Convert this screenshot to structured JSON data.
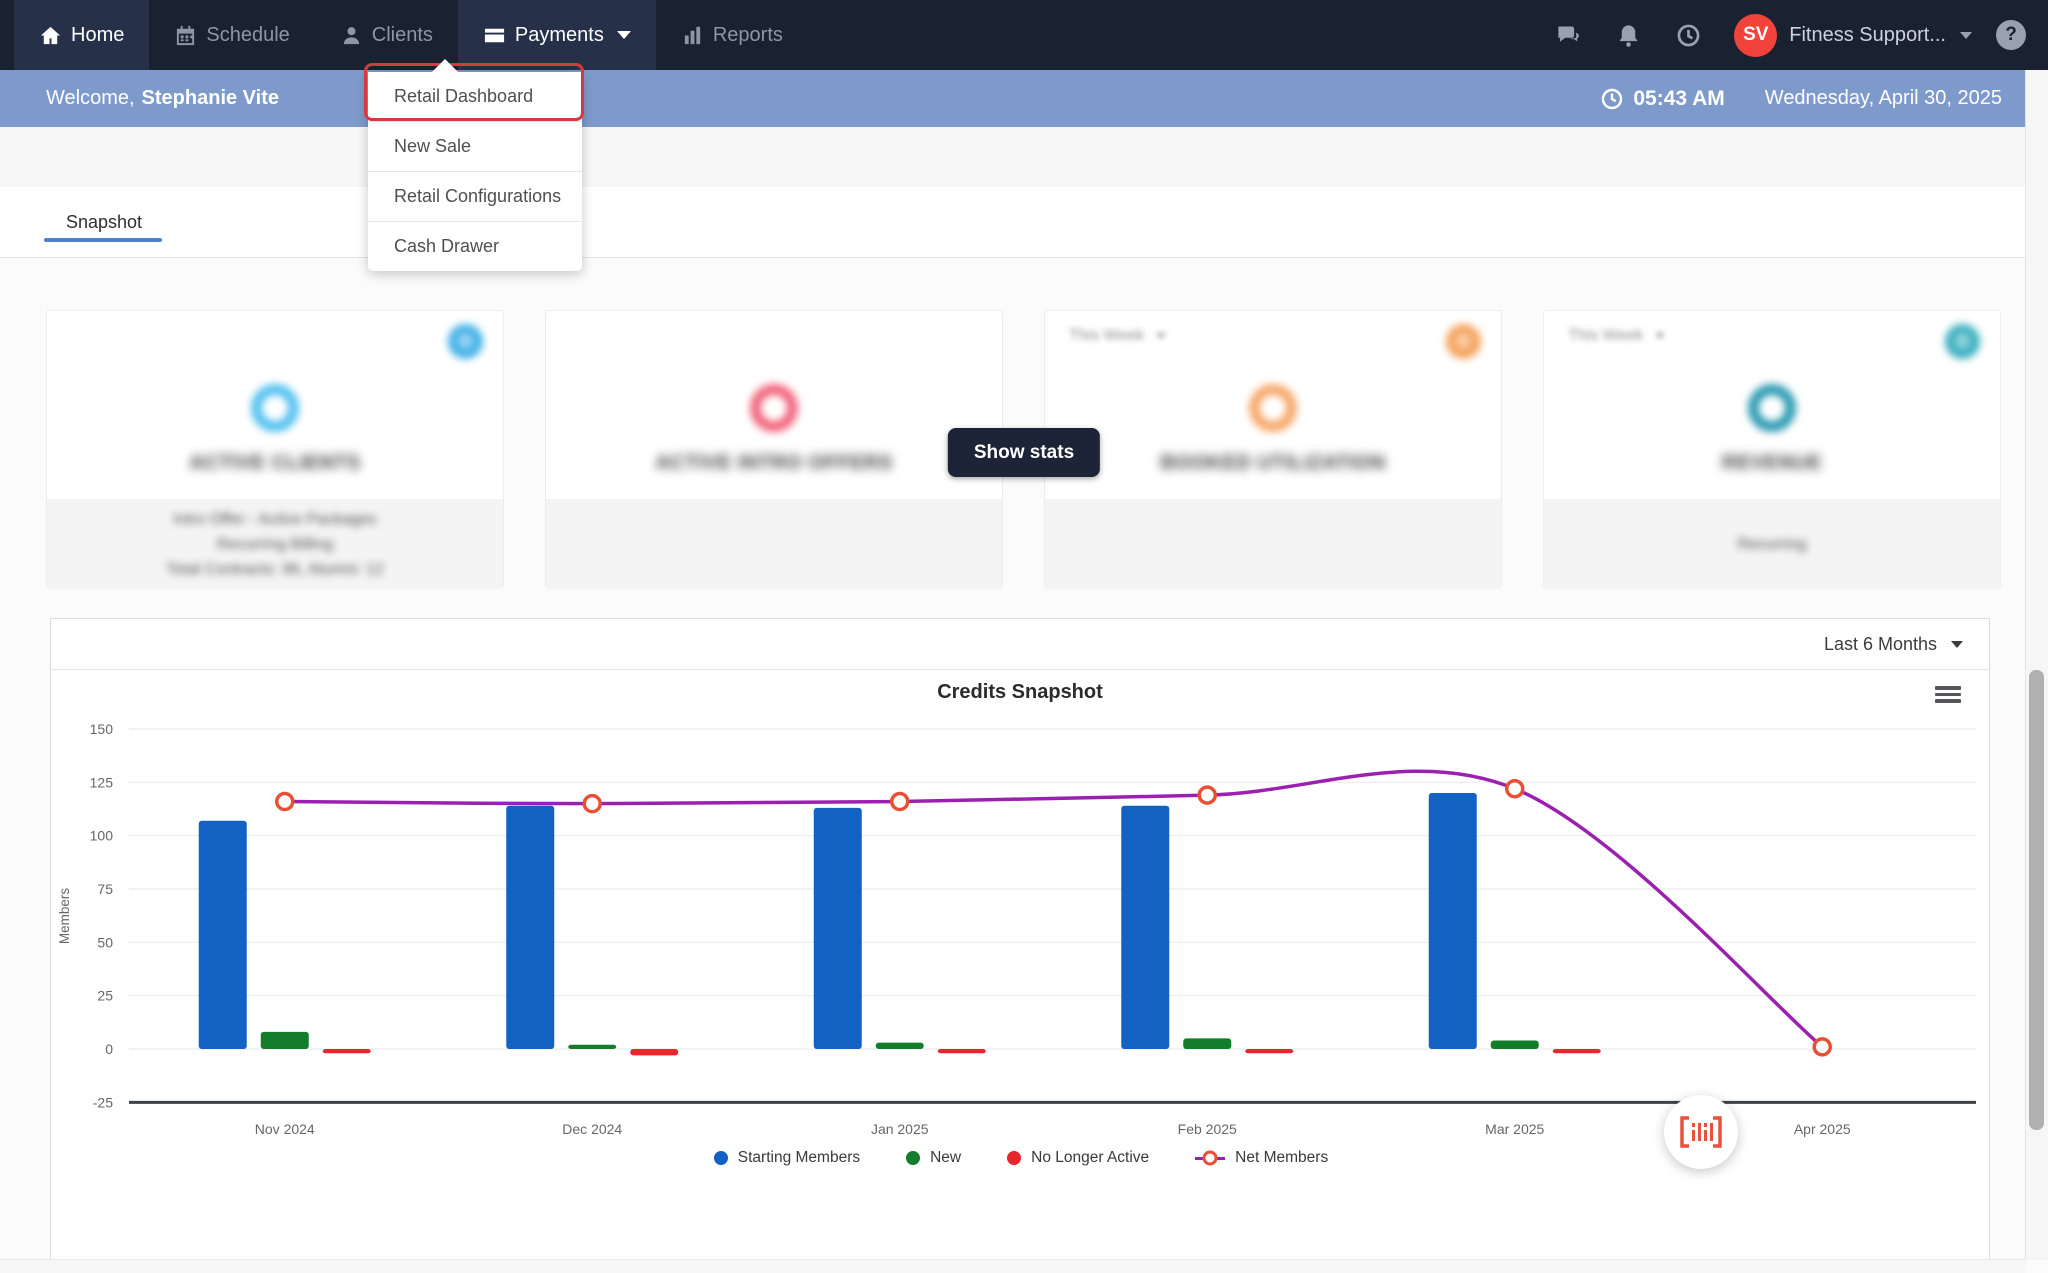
{
  "navbar": {
    "items": [
      {
        "label": "Home",
        "icon": "home-icon",
        "active": true
      },
      {
        "label": "Schedule",
        "icon": "calendar-icon",
        "active": false
      },
      {
        "label": "Clients",
        "icon": "person-icon",
        "active": false
      },
      {
        "label": "Payments",
        "icon": "credit-card-icon",
        "active": true,
        "expanded": true
      },
      {
        "label": "Reports",
        "icon": "bar-chart-icon",
        "active": false
      }
    ],
    "right": {
      "icons": [
        "chat-icon",
        "notifications-bell-icon",
        "history-clock-icon"
      ],
      "avatar_initials": "SV",
      "avatar_color": "#f2433b",
      "account_label": "Fitness Support...",
      "help_icon": "help-icon"
    }
  },
  "welcome_bar": {
    "greeting_prefix": "Welcome,",
    "user_name": "Stephanie Vite",
    "clock_icon": "clock-icon",
    "time": "05:43 AM",
    "date": "Wednesday, April 30, 2025",
    "background": "#7e9acb"
  },
  "payments_menu": {
    "items": [
      "Retail Dashboard",
      "New Sale",
      "Retail Configurations",
      "Cash Drawer"
    ],
    "highlighted_item": "Retail Dashboard",
    "highlight_color": "#d63a41"
  },
  "tabs": {
    "active_tab": "Snapshot",
    "underline_color": "#4d7fd1"
  },
  "stat_cards": [
    {
      "title": "ACTIVE CLIENTS",
      "accent_color": "#57c2f0",
      "gear_color": "#41b1e8",
      "period": null,
      "footer_lines": [
        "Intro Offer - Active Packages",
        "Recurring Billing",
        "Total Contracts: 96, Alumni: 12"
      ]
    },
    {
      "title": "ACTIVE INTRO OFFERS",
      "accent_color": "#f2677f",
      "gear_color": null,
      "period": null,
      "footer_lines": []
    },
    {
      "title": "BOOKED UTILIZATION",
      "accent_color": "#f6a96d",
      "gear_color": "#f5a25d",
      "period": "This Week",
      "footer_lines": []
    },
    {
      "title": "REVENUE",
      "accent_color": "#2f9bb3",
      "gear_color": "#3bafbf",
      "period": "This Week",
      "footer_lines": [
        "Recurring"
      ]
    }
  ],
  "show_stats_button": {
    "label": "Show stats",
    "background": "#1d2438"
  },
  "chart_panel": {
    "range_label": "Last 6 Months",
    "menu_icon": "hamburger-menu-icon",
    "scan_icon": "barcode-scan-icon"
  },
  "chart_data": {
    "type": "bar",
    "title": "Credits Snapshot",
    "categories": [
      "Nov 2024",
      "Dec 2024",
      "Jan 2025",
      "Feb 2025",
      "Mar 2025",
      "Apr 2025"
    ],
    "series": [
      {
        "name": "Starting Members",
        "kind": "bar",
        "color": "#1262c4",
        "values": [
          107,
          114,
          113,
          114,
          120,
          0
        ]
      },
      {
        "name": "New",
        "kind": "bar",
        "color": "#147d2b",
        "values": [
          8,
          2,
          3,
          5,
          4,
          0
        ]
      },
      {
        "name": "No Longer Active",
        "kind": "bar",
        "color": "#e8262c",
        "values": [
          -2,
          -3,
          -2,
          -2,
          -2,
          0
        ]
      },
      {
        "name": "Net Members",
        "kind": "line",
        "color": "#9c20b0",
        "marker_color": "#e94f35",
        "values": [
          116,
          115,
          116,
          119,
          122,
          1
        ]
      }
    ],
    "ylabel": "Members",
    "ylim": [
      -25,
      150
    ],
    "ytick_step": 25,
    "grid": true,
    "legend_position": "bottom"
  }
}
